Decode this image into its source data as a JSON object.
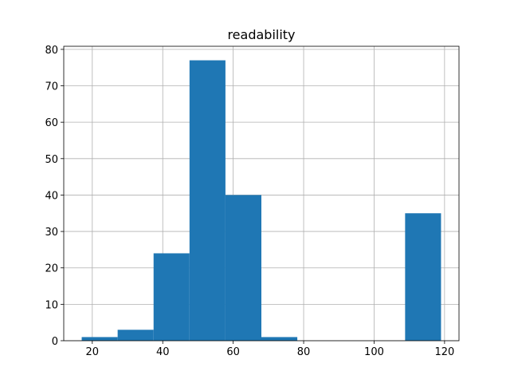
{
  "chart_data": {
    "type": "histogram",
    "title": "readability",
    "bins": [
      17,
      27.2,
      37.4,
      47.6,
      57.8,
      68,
      78.2,
      88.4,
      98.6,
      108.8,
      119
    ],
    "counts": [
      1,
      3,
      24,
      77,
      40,
      1,
      0,
      0,
      0,
      35
    ],
    "color": "#1f77b4",
    "xlim": [
      11.9,
      124.1
    ],
    "xticks": [
      20,
      40,
      60,
      80,
      100,
      120
    ],
    "ylim": [
      0,
      80.85
    ],
    "yticks": [
      0,
      10,
      20,
      30,
      40,
      50,
      60,
      70,
      80
    ],
    "grid": true
  }
}
